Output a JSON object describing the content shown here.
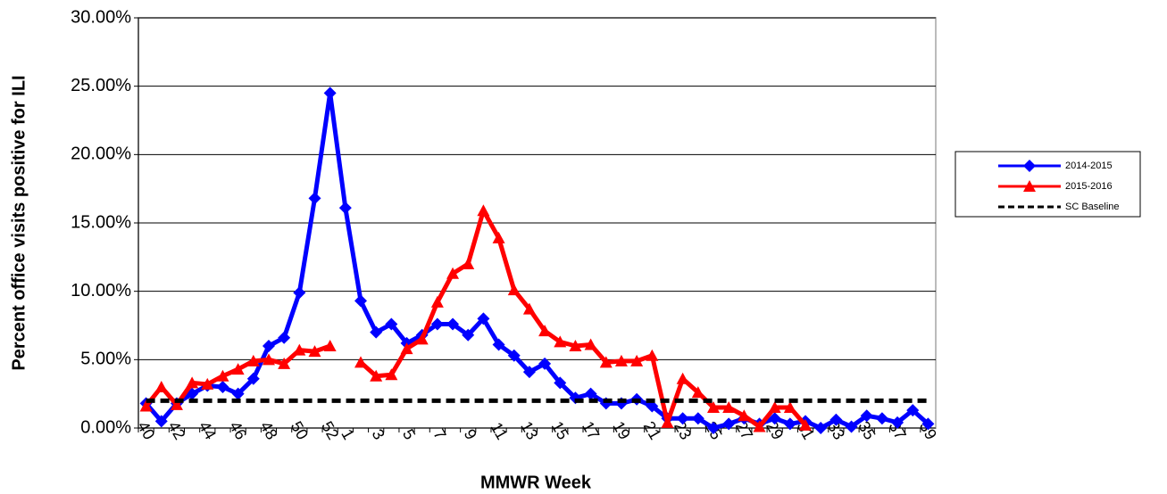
{
  "chart_data": {
    "type": "line",
    "x_label": "MMWR Week",
    "y_label": "Percent office visits positive for ILI",
    "categories": [
      "40",
      null,
      "42",
      null,
      "44",
      null,
      "46",
      null,
      "48",
      null,
      "50",
      null,
      "52",
      "1",
      null,
      "3",
      null,
      "5",
      null,
      "7",
      null,
      "9",
      null,
      "11",
      null,
      "13",
      null,
      "15",
      null,
      "17",
      null,
      "19",
      null,
      "21",
      null,
      "23",
      null,
      "25",
      null,
      "27",
      null,
      "29",
      null,
      "31",
      null,
      "33",
      null,
      "35",
      null,
      "37",
      null,
      "39"
    ],
    "series": [
      {
        "name": "2014-2015",
        "color": "#0000ff",
        "marker": "diamond",
        "values": [
          1.8,
          0.5,
          1.8,
          2.5,
          3.1,
          3.0,
          2.5,
          3.6,
          6.0,
          6.6,
          9.9,
          16.8,
          24.5,
          16.1,
          9.3,
          7.0,
          7.6,
          6.2,
          6.8,
          7.6,
          7.6,
          6.8,
          8.0,
          6.1,
          5.3,
          4.1,
          4.7,
          3.3,
          2.2,
          2.5,
          1.8,
          1.8,
          2.1,
          1.6,
          0.7,
          0.7,
          0.7,
          0.0,
          0.3,
          0.7,
          0.3,
          0.7,
          0.3,
          0.5,
          0.0,
          0.6,
          0.1,
          0.9,
          0.7,
          0.4,
          1.3,
          0.3
        ]
      },
      {
        "name": "2015-2016",
        "color": "#ff0000",
        "marker": "triangle",
        "values": [
          1.6,
          3.0,
          1.7,
          3.3,
          3.2,
          3.8,
          4.3,
          4.9,
          5.0,
          4.7,
          5.7,
          5.6,
          6.0,
          null,
          4.8,
          3.8,
          3.9,
          5.8,
          6.5,
          9.2,
          11.3,
          12.0,
          15.9,
          13.9,
          10.1,
          8.7,
          7.1,
          6.3,
          6.0,
          6.1,
          4.8,
          4.9,
          4.9,
          5.3,
          0.4,
          3.6,
          2.6,
          1.5,
          1.5,
          0.9,
          0.1,
          1.5,
          1.5,
          0.2,
          null,
          null,
          null,
          null,
          null,
          null,
          null,
          null
        ]
      },
      {
        "name": "SC Baseline",
        "color": "#000000",
        "marker": "none",
        "dashed": true,
        "values": [
          2,
          2,
          2,
          2,
          2,
          2,
          2,
          2,
          2,
          2,
          2,
          2,
          2,
          2,
          2,
          2,
          2,
          2,
          2,
          2,
          2,
          2,
          2,
          2,
          2,
          2,
          2,
          2,
          2,
          2,
          2,
          2,
          2,
          2,
          2,
          2,
          2,
          2,
          2,
          2,
          2,
          2,
          2,
          2,
          2,
          2,
          2,
          2,
          2,
          2,
          2,
          2
        ]
      }
    ],
    "ylim": [
      0,
      30
    ],
    "yticks": [
      {
        "value": 0,
        "label": "0.00%"
      },
      {
        "value": 5,
        "label": "5.00%"
      },
      {
        "value": 10,
        "label": "10.00%"
      },
      {
        "value": 15,
        "label": "15.00%"
      },
      {
        "value": 20,
        "label": "20.00%"
      },
      {
        "value": 25,
        "label": "25.00%"
      },
      {
        "value": 30,
        "label": "30.00%"
      }
    ],
    "grid": true,
    "legend": "right"
  }
}
